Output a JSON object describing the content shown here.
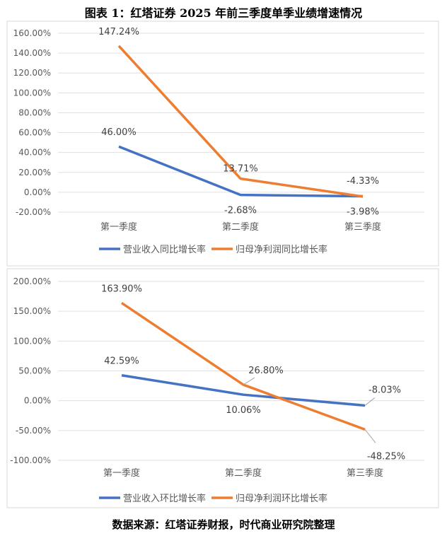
{
  "title": "图表 1：红塔证券 2025 年前三季度单季业绩增速情况",
  "footer": "数据来源：红塔证券财报，时代商业研究院整理",
  "chart_data": [
    {
      "type": "line",
      "categories": [
        "第一季度",
        "第二季度",
        "第三季度"
      ],
      "yticks": [
        "160.00%",
        "140.00%",
        "120.00%",
        "100.00%",
        "80.00%",
        "60.00%",
        "40.00%",
        "20.00%",
        "0.00%",
        "-20.00%"
      ],
      "ylim": [
        -20,
        160
      ],
      "grid": true,
      "legend": "bottom",
      "series": [
        {
          "name": "营业收入同比增长率",
          "color": "#4472C4",
          "values": [
            46.0,
            -2.68,
            -3.98
          ],
          "labels": [
            "46.00%",
            "-2.68%",
            "-3.98%"
          ]
        },
        {
          "name": "归母净利润同比增长率",
          "color": "#ED7D31",
          "values": [
            147.24,
            13.71,
            -4.33
          ],
          "labels": [
            "147.24%",
            "13.71%",
            "-4.33%"
          ]
        }
      ]
    },
    {
      "type": "line",
      "categories": [
        "第一季度",
        "第二季度",
        "第三季度"
      ],
      "yticks": [
        "200.00%",
        "150.00%",
        "100.00%",
        "50.00%",
        "0.00%",
        "-50.00%",
        "-100.00%"
      ],
      "ylim": [
        -100,
        200
      ],
      "grid": true,
      "legend": "bottom",
      "series": [
        {
          "name": "营业收入环比增长率",
          "color": "#4472C4",
          "values": [
            42.59,
            10.06,
            -8.03
          ],
          "labels": [
            "42.59%",
            "10.06%",
            "-8.03%"
          ]
        },
        {
          "name": "归母净利润环比增长率",
          "color": "#ED7D31",
          "values": [
            163.9,
            26.8,
            -48.25
          ],
          "labels": [
            "163.90%",
            "26.80%",
            "-48.25%"
          ]
        }
      ]
    }
  ]
}
